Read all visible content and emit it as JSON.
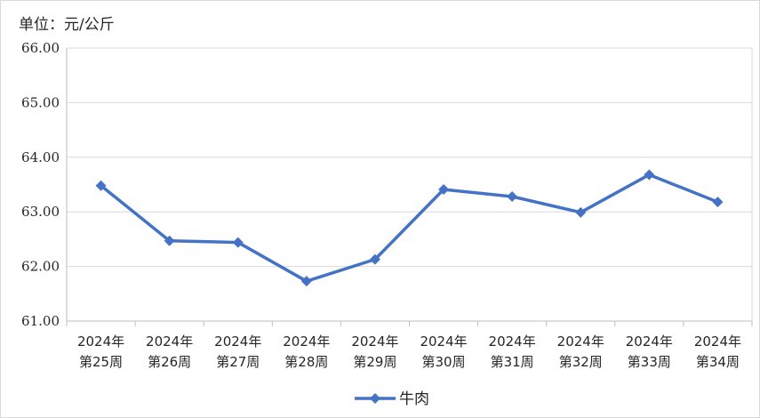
{
  "chart_data": {
    "type": "line",
    "unit_label": "单位：元/公斤",
    "categories": [
      [
        "2024年",
        "第25周"
      ],
      [
        "2024年",
        "第26周"
      ],
      [
        "2024年",
        "第27周"
      ],
      [
        "2024年",
        "第28周"
      ],
      [
        "2024年",
        "第29周"
      ],
      [
        "2024年",
        "第30周"
      ],
      [
        "2024年",
        "第31周"
      ],
      [
        "2024年",
        "第32周"
      ],
      [
        "2024年",
        "第33周"
      ],
      [
        "2024年",
        "第34周"
      ]
    ],
    "series": [
      {
        "name": "牛肉",
        "color": "#4472C4",
        "marker": "diamond",
        "values": [
          63.48,
          62.47,
          62.44,
          61.73,
          62.13,
          63.41,
          63.28,
          62.99,
          63.68,
          63.18
        ]
      }
    ],
    "ylim": [
      61.0,
      66.0
    ],
    "yticks": [
      "61.00",
      "62.00",
      "63.00",
      "64.00",
      "65.00",
      "66.00"
    ],
    "grid": true,
    "legend_position": "bottom"
  }
}
